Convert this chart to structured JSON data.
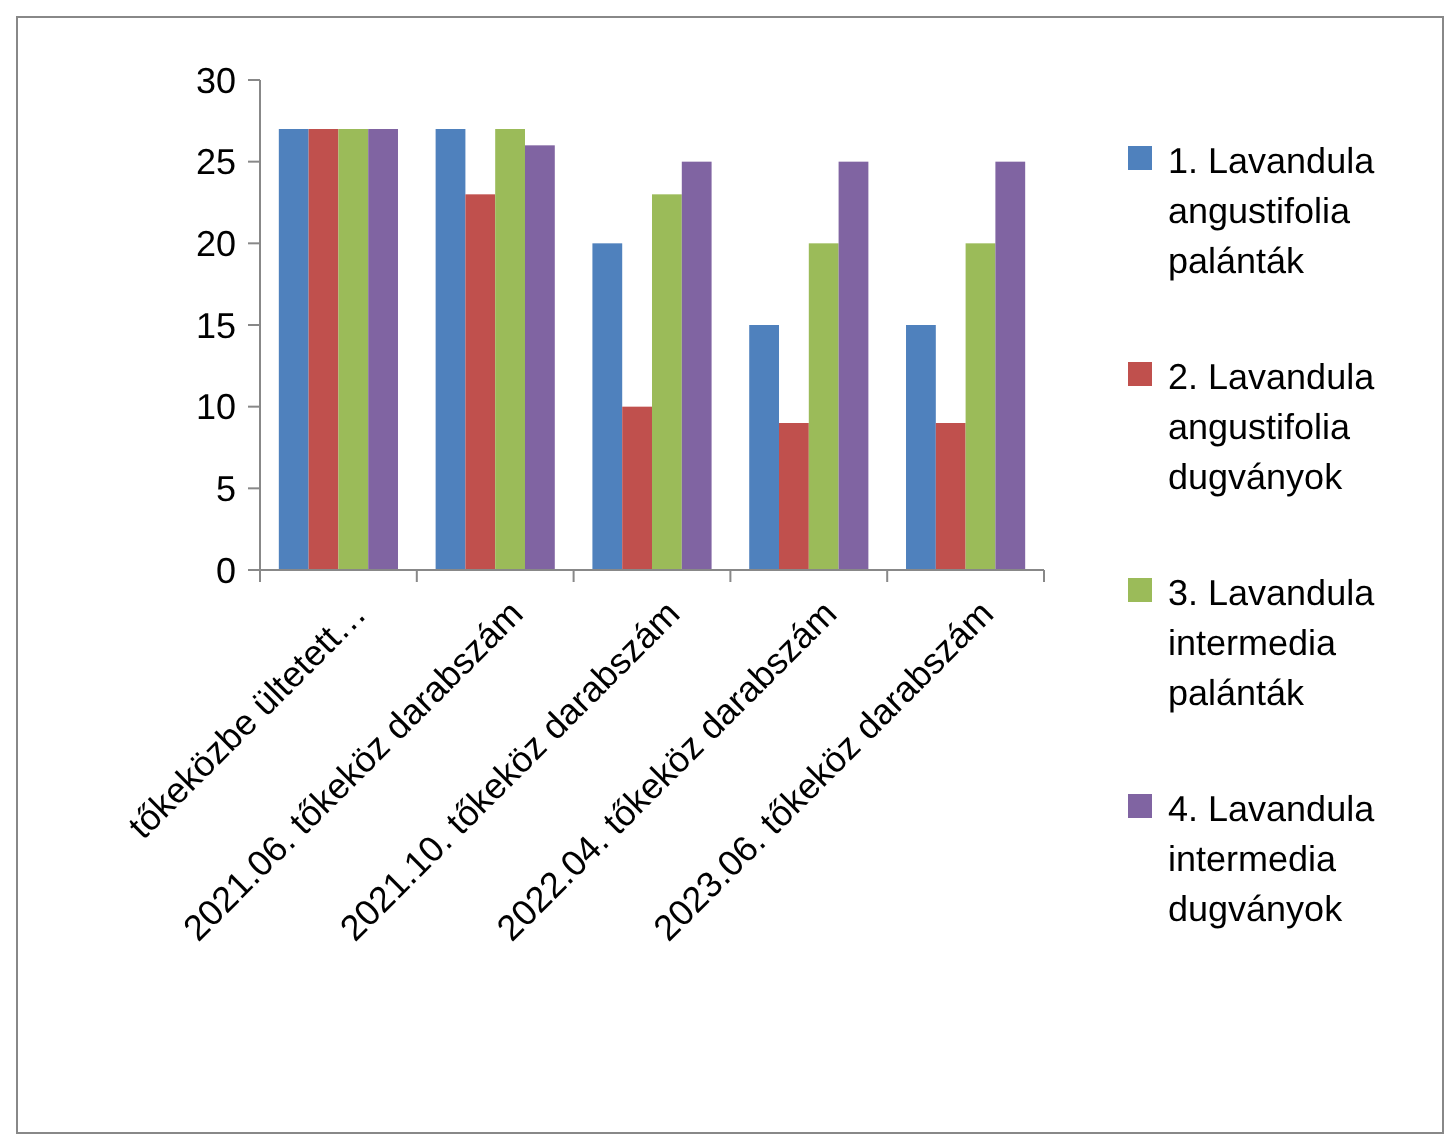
{
  "chart_data": {
    "type": "bar",
    "categories": [
      "tőkeközbe ültetett…",
      "2021.06. tőkeköz darabszám",
      "2021.10. tőkeköz darabszám",
      "2022.04. tőkeköz darabszám",
      "2023.06. tőkeköz darabszám"
    ],
    "series": [
      {
        "name": "1. Lavandula angustifolia palánták",
        "color": "#4f81bd",
        "values": [
          27,
          27,
          20,
          15,
          15
        ]
      },
      {
        "name": "2. Lavandula angustifolia dugványok",
        "color": "#c0504d",
        "values": [
          27,
          23,
          10,
          9,
          9
        ]
      },
      {
        "name": "3. Lavandula intermedia palánták",
        "color": "#9bbb59",
        "values": [
          27,
          27,
          23,
          20,
          20
        ]
      },
      {
        "name": "4. Lavandula intermedia dugványok",
        "color": "#8064a2",
        "values": [
          27,
          26,
          25,
          25,
          25
        ]
      }
    ],
    "ylim": [
      0,
      30
    ],
    "yticks": [
      0,
      5,
      10,
      15,
      20,
      25,
      30
    ],
    "grid": false,
    "legend": "right"
  }
}
